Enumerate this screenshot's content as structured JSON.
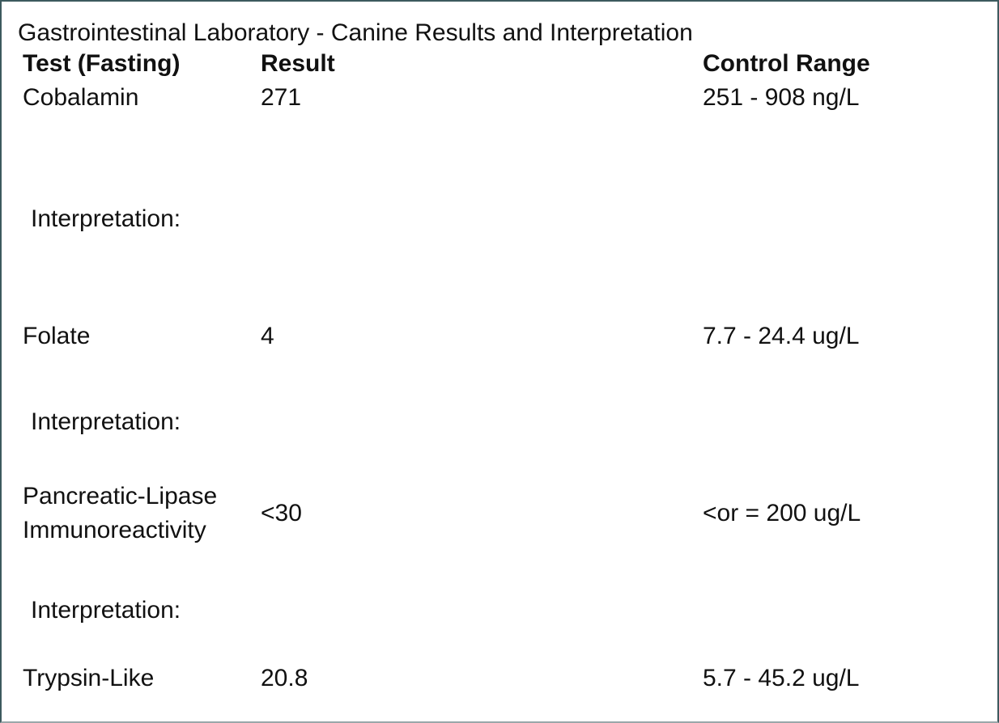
{
  "header": {
    "title": "Gastrointestinal Laboratory - Canine Results and Interpretation"
  },
  "table": {
    "columns": [
      "Test (Fasting)",
      "Result",
      "Control Range"
    ],
    "rows": [
      {
        "test": [
          "Cobalamin"
        ],
        "result": "271",
        "range": "251 - 908 ng/L",
        "interpretation": "Interpretation:"
      },
      {
        "test": [
          "Folate"
        ],
        "result": "4",
        "range": "7.7 - 24.4 ug/L",
        "interpretation": "Interpretation:"
      },
      {
        "test": [
          "Pancreatic-Lipase",
          "Immunoreactivity"
        ],
        "result": "<30",
        "range": "<or = 200 ug/L",
        "interpretation": "Interpretation:"
      },
      {
        "test": [
          "Trypsin-Like"
        ],
        "result": "20.8",
        "range": "5.7 - 45.2 ug/L"
      }
    ]
  }
}
